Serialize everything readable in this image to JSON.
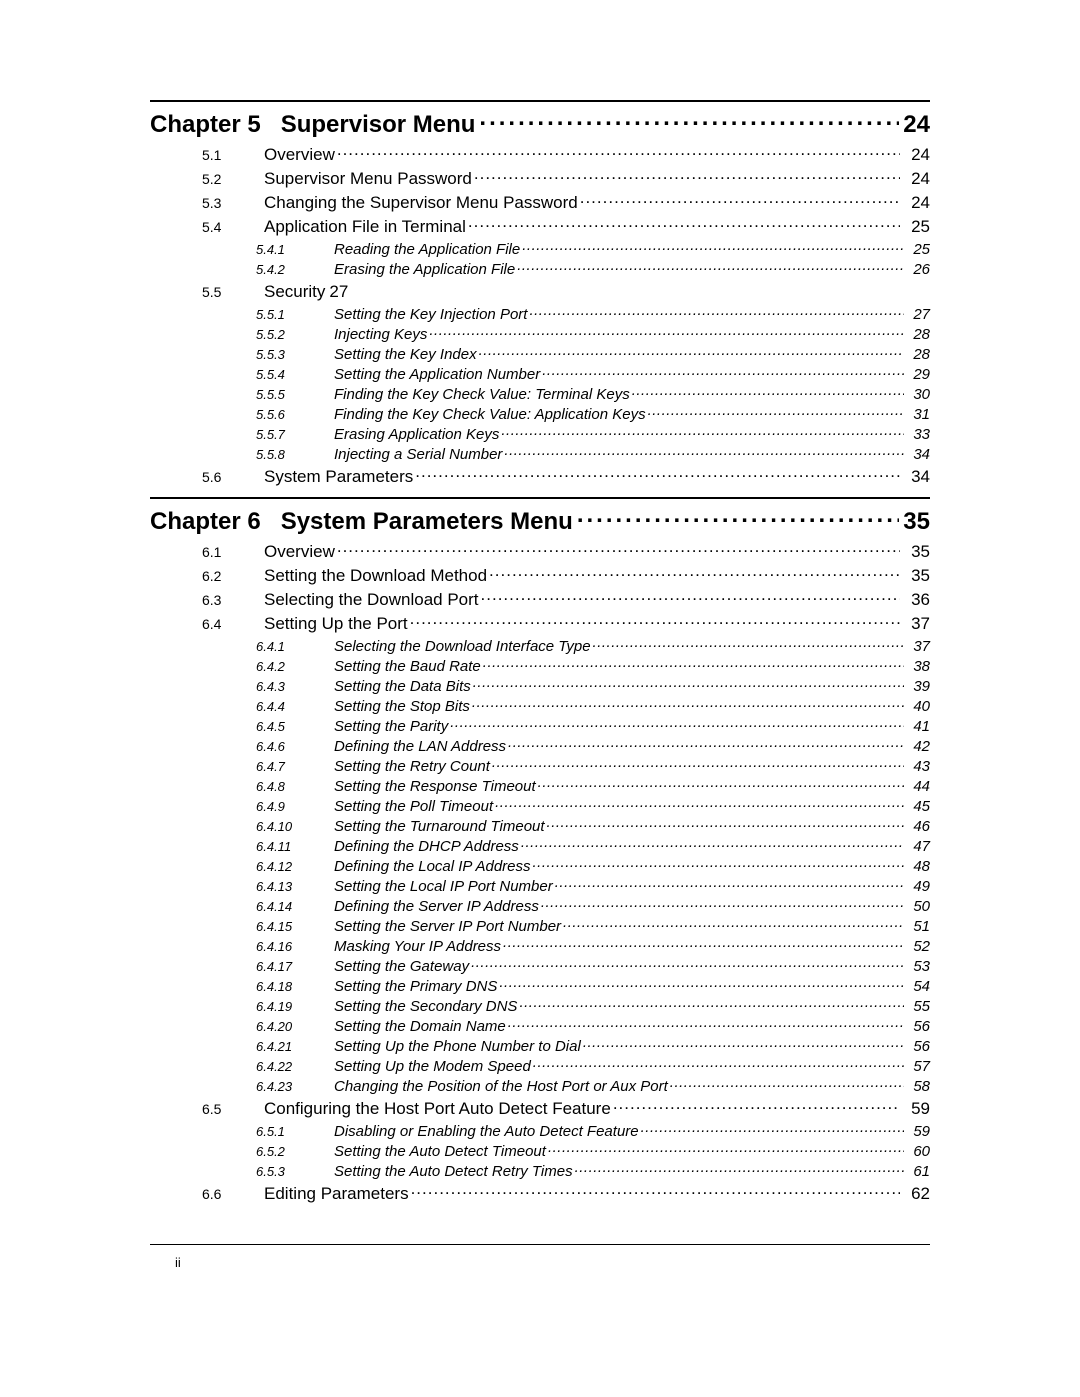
{
  "footer_page": "ii",
  "chapters": [
    {
      "label": "Chapter 5",
      "title": "Supervisor Menu",
      "page": "24",
      "sections": [
        {
          "num": "5.1",
          "title": "Overview",
          "page": "24",
          "subs": []
        },
        {
          "num": "5.2",
          "title": "Supervisor Menu Password",
          "page": "24",
          "subs": []
        },
        {
          "num": "5.3",
          "title": "Changing the Supervisor Menu Password",
          "page": "24",
          "subs": []
        },
        {
          "num": "5.4",
          "title": "Application File in Terminal",
          "page": "25",
          "subs": [
            {
              "num": "5.4.1",
              "title": "Reading the Application File",
              "page": "25"
            },
            {
              "num": "5.4.2",
              "title": "Erasing the Application File",
              "page": "26"
            }
          ]
        },
        {
          "num": "5.5",
          "title": "Security",
          "page": "27",
          "inline_page": true,
          "subs": [
            {
              "num": "5.5.1",
              "title": "Setting the Key Injection Port",
              "page": "27"
            },
            {
              "num": "5.5.2",
              "title": "Injecting Keys",
              "page": "28"
            },
            {
              "num": "5.5.3",
              "title": "Setting the Key Index",
              "page": "28"
            },
            {
              "num": "5.5.4",
              "title": "Setting the Application Number",
              "page": "29"
            },
            {
              "num": "5.5.5",
              "title": "Finding the Key Check Value: Terminal Keys",
              "page": "30"
            },
            {
              "num": "5.5.6",
              "title": "Finding the Key Check Value: Application Keys",
              "page": "31"
            },
            {
              "num": "5.5.7",
              "title": "Erasing Application Keys",
              "page": "33"
            },
            {
              "num": "5.5.8",
              "title": "Injecting a Serial Number",
              "page": "34"
            }
          ]
        },
        {
          "num": "5.6",
          "title": "System Parameters",
          "page": "34",
          "subs": []
        }
      ]
    },
    {
      "label": "Chapter 6",
      "title": "System Parameters Menu",
      "page": "35",
      "sections": [
        {
          "num": "6.1",
          "title": "Overview",
          "page": "35",
          "subs": []
        },
        {
          "num": "6.2",
          "title": "Setting the Download Method",
          "page": "35",
          "subs": []
        },
        {
          "num": "6.3",
          "title": "Selecting the Download Port",
          "page": "36",
          "subs": []
        },
        {
          "num": "6.4",
          "title": "Setting Up the Port",
          "page": "37",
          "subs": [
            {
              "num": "6.4.1",
              "title": "Selecting the Download Interface Type",
              "page": "37"
            },
            {
              "num": "6.4.2",
              "title": "Setting the Baud Rate",
              "page": "38"
            },
            {
              "num": "6.4.3",
              "title": "Setting the Data Bits",
              "page": "39"
            },
            {
              "num": "6.4.4",
              "title": "Setting the Stop Bits",
              "page": "40"
            },
            {
              "num": "6.4.5",
              "title": "Setting the Parity",
              "page": "41"
            },
            {
              "num": "6.4.6",
              "title": "Defining the LAN Address",
              "page": "42"
            },
            {
              "num": "6.4.7",
              "title": "Setting the Retry Count",
              "page": "43"
            },
            {
              "num": "6.4.8",
              "title": "Setting the Response Timeout",
              "page": "44"
            },
            {
              "num": "6.4.9",
              "title": "Setting the Poll Timeout",
              "page": "45"
            },
            {
              "num": "6.4.10",
              "title": "Setting the Turnaround Timeout",
              "page": "46"
            },
            {
              "num": "6.4.11",
              "title": "Defining the DHCP Address",
              "page": "47"
            },
            {
              "num": "6.4.12",
              "title": "Defining the Local IP Address",
              "page": "48"
            },
            {
              "num": "6.4.13",
              "title": "Setting the Local IP Port Number",
              "page": "49"
            },
            {
              "num": "6.4.14",
              "title": "Defining the Server IP Address",
              "page": "50"
            },
            {
              "num": "6.4.15",
              "title": "Setting the Server IP Port Number",
              "page": "51"
            },
            {
              "num": "6.4.16",
              "title": "Masking Your IP Address",
              "page": "52"
            },
            {
              "num": "6.4.17",
              "title": "Setting the Gateway",
              "page": "53"
            },
            {
              "num": "6.4.18",
              "title": "Setting the Primary DNS",
              "page": "54"
            },
            {
              "num": "6.4.19",
              "title": "Setting the Secondary DNS",
              "page": "55"
            },
            {
              "num": "6.4.20",
              "title": "Setting the Domain Name",
              "page": "56"
            },
            {
              "num": "6.4.21",
              "title": "Setting Up the Phone Number to Dial",
              "page": "56"
            },
            {
              "num": "6.4.22",
              "title": "Setting Up the Modem Speed",
              "page": "57"
            },
            {
              "num": "6.4.23",
              "title": "Changing the Position of the Host Port or Aux Port",
              "page": "58"
            }
          ]
        },
        {
          "num": "6.5",
          "title": "Configuring the Host Port Auto Detect Feature",
          "page": "59",
          "subs": [
            {
              "num": "6.5.1",
              "title": "Disabling or Enabling the Auto Detect Feature",
              "page": "59"
            },
            {
              "num": "6.5.2",
              "title": "Setting the Auto Detect Timeout",
              "page": "60"
            },
            {
              "num": "6.5.3",
              "title": "Setting the Auto Detect Retry Times",
              "page": "61"
            }
          ]
        },
        {
          "num": "6.6",
          "title": "Editing Parameters",
          "page": "62",
          "subs": []
        }
      ]
    }
  ]
}
